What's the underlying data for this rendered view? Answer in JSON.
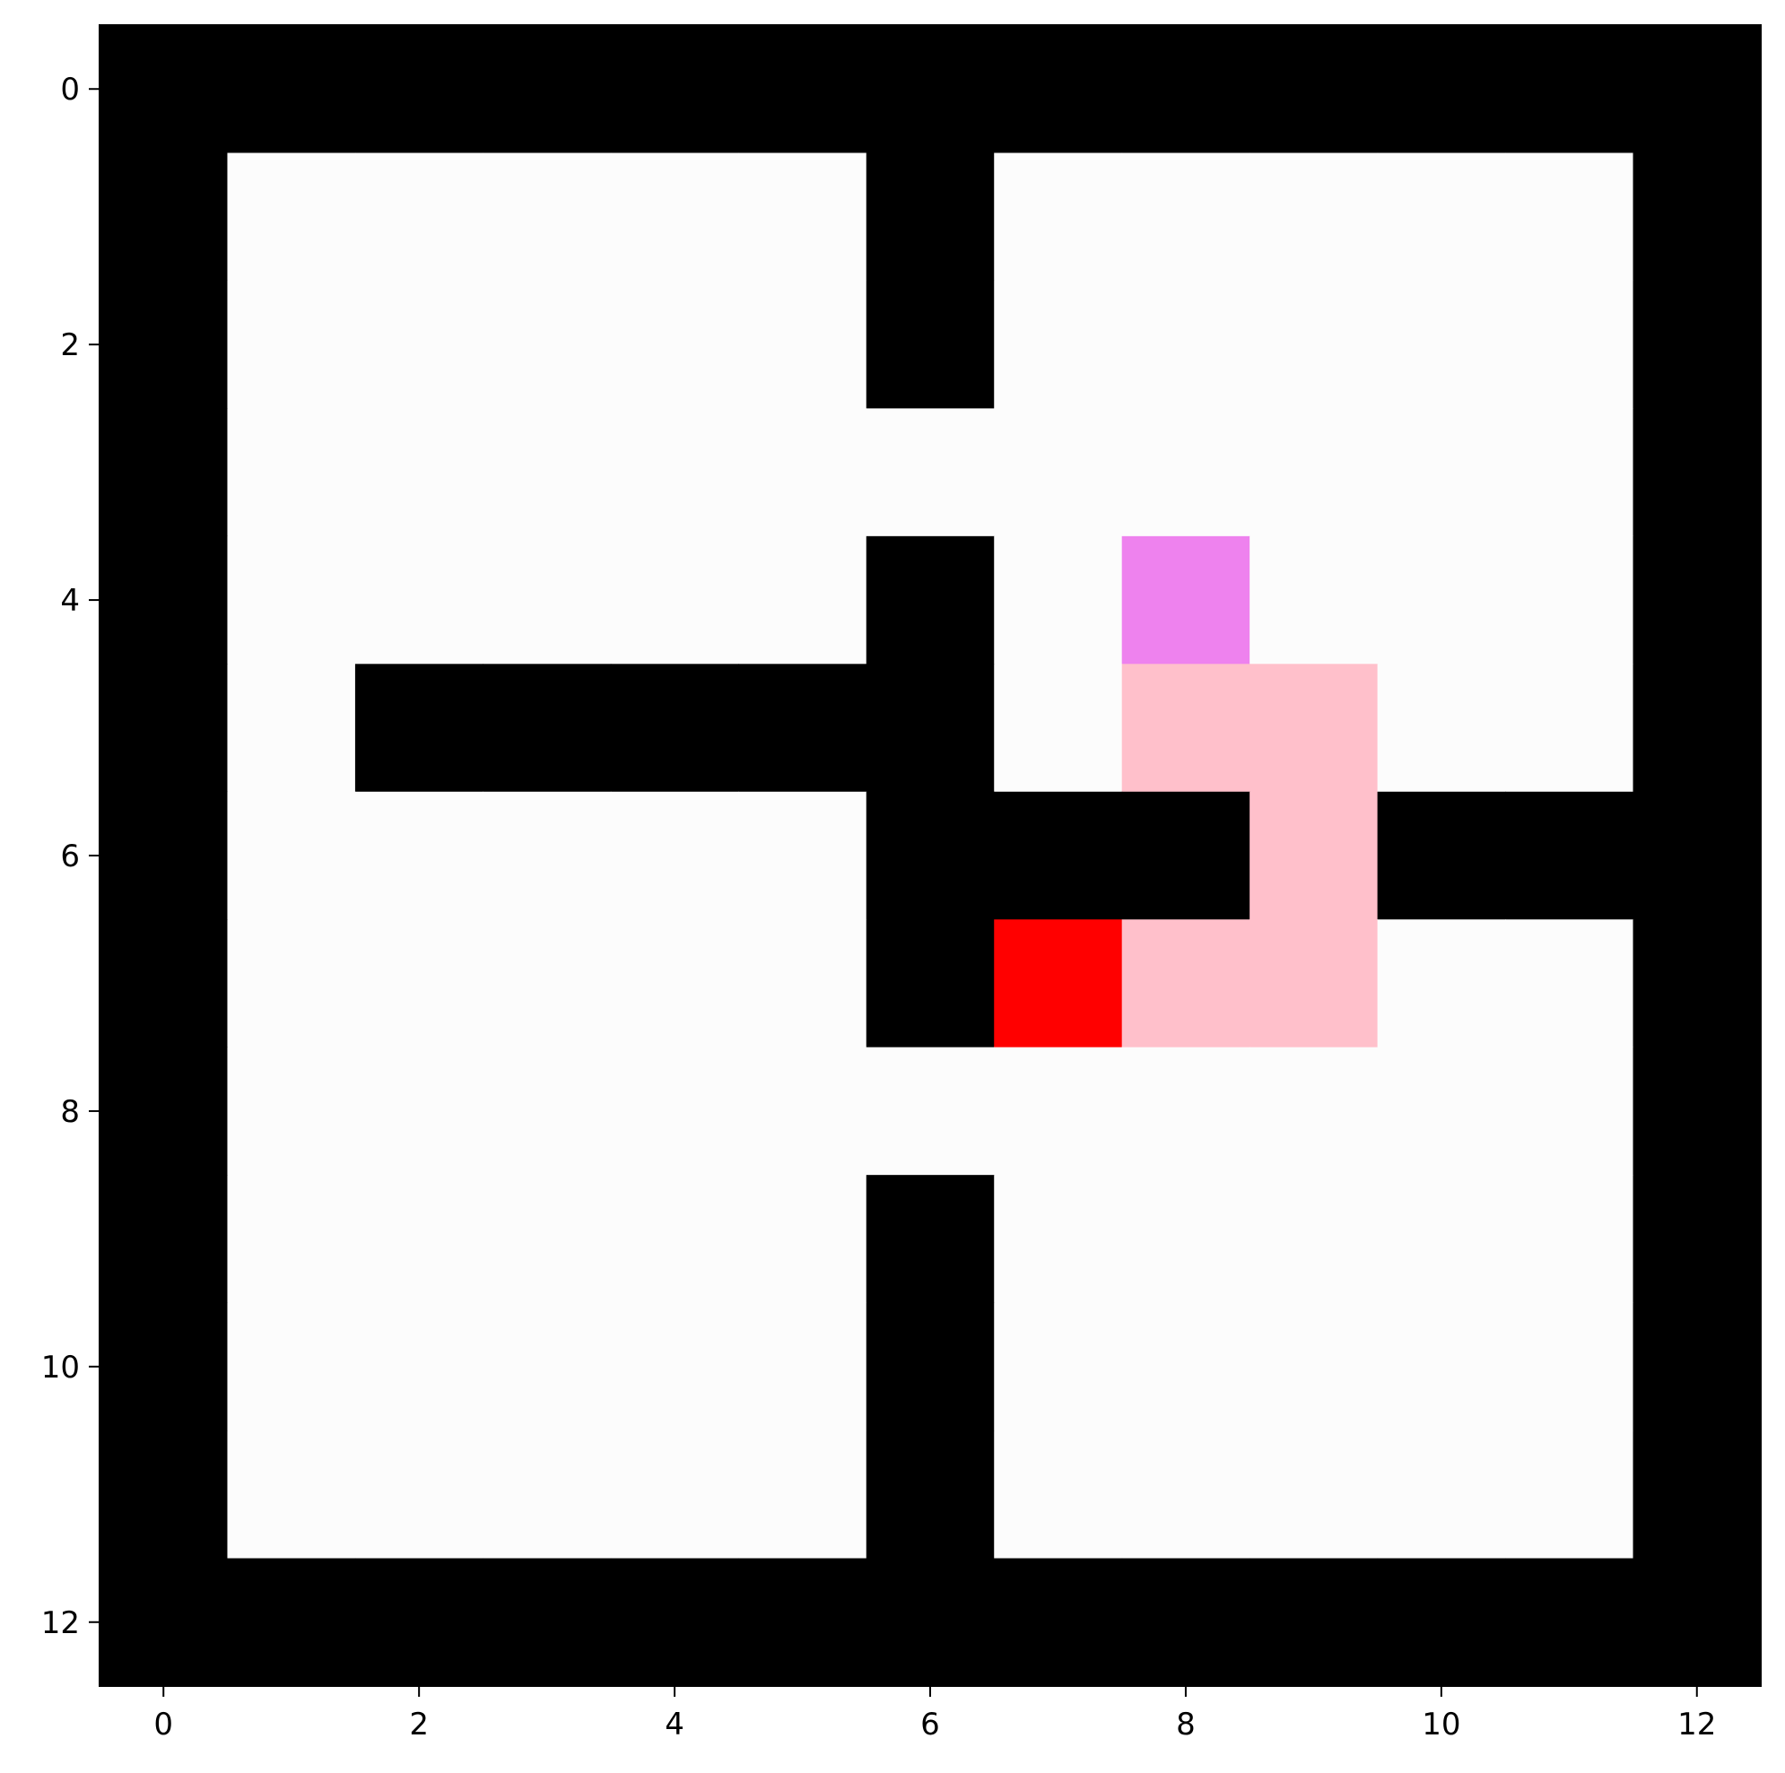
{
  "grid": {
    "rows": 13,
    "cols": 13,
    "legend_colors": {
      "0": "#fcfcfc",
      "1": "#000000",
      "2": "#ff0000",
      "3": "#ffc0cb",
      "4": "#ee82ee"
    },
    "cell_meaning": {
      "0": "floor",
      "1": "wall",
      "2": "agent",
      "3": "trail",
      "4": "goal"
    },
    "cells": [
      [
        1,
        1,
        1,
        1,
        1,
        1,
        1,
        1,
        1,
        1,
        1,
        1,
        1
      ],
      [
        1,
        0,
        0,
        0,
        0,
        0,
        1,
        0,
        0,
        0,
        0,
        0,
        1
      ],
      [
        1,
        0,
        0,
        0,
        0,
        0,
        1,
        0,
        0,
        0,
        0,
        0,
        1
      ],
      [
        1,
        0,
        0,
        0,
        0,
        0,
        0,
        0,
        0,
        0,
        0,
        0,
        1
      ],
      [
        1,
        0,
        0,
        0,
        0,
        0,
        1,
        0,
        4,
        0,
        0,
        0,
        1
      ],
      [
        1,
        0,
        1,
        1,
        1,
        1,
        1,
        0,
        3,
        3,
        0,
        0,
        1
      ],
      [
        1,
        0,
        0,
        0,
        0,
        0,
        1,
        1,
        1,
        3,
        1,
        1,
        1
      ],
      [
        1,
        0,
        0,
        0,
        0,
        0,
        1,
        2,
        3,
        3,
        0,
        0,
        1
      ],
      [
        1,
        0,
        0,
        0,
        0,
        0,
        0,
        0,
        0,
        0,
        0,
        0,
        1
      ],
      [
        1,
        0,
        0,
        0,
        0,
        0,
        1,
        0,
        0,
        0,
        0,
        0,
        1
      ],
      [
        1,
        0,
        0,
        0,
        0,
        0,
        1,
        0,
        0,
        0,
        0,
        0,
        1
      ],
      [
        1,
        0,
        0,
        0,
        0,
        0,
        1,
        0,
        0,
        0,
        0,
        0,
        1
      ],
      [
        1,
        1,
        1,
        1,
        1,
        1,
        1,
        1,
        1,
        1,
        1,
        1,
        1
      ]
    ]
  },
  "axes": {
    "x_ticks": [
      0,
      2,
      4,
      6,
      8,
      10,
      12
    ],
    "x_tick_labels": [
      "0",
      "2",
      "4",
      "6",
      "8",
      "10",
      "12"
    ],
    "y_ticks": [
      0,
      2,
      4,
      6,
      8,
      10,
      12
    ],
    "y_tick_labels": [
      "0",
      "2",
      "4",
      "6",
      "8",
      "10",
      "12"
    ]
  }
}
